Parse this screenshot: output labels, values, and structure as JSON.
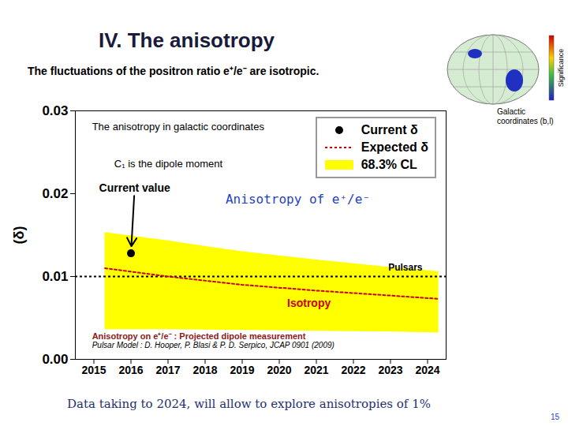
{
  "chart_data": {
    "type": "line",
    "title": "IV. The anisotropy",
    "subtitle": "The fluctuations of the positron ratio e⁺/e⁻ are isotropic.",
    "y_label": "(δ)",
    "caption": "Data taking to 2024, will allow to explore anisotropies of 1%",
    "page_number": "15",
    "skymap": {
      "colorbar_label": "Significance",
      "caption": "Galactic coordinates (b,l)"
    },
    "xlim": [
      2014.5,
      2024.5
    ],
    "xticks": [
      2015,
      2016,
      2017,
      2018,
      2019,
      2020,
      2021,
      2022,
      2023,
      2024
    ],
    "ylim": [
      0,
      0.03
    ],
    "yticks": [
      {
        "value": 0,
        "label": "0.00"
      },
      0.01,
      0.02,
      0.03
    ],
    "grid": false,
    "legend": "top-right",
    "x": [
      2015.3,
      2017,
      2019,
      2021,
      2023,
      2024.3
    ],
    "series": [
      {
        "name": "Current δ",
        "type": "scatter",
        "marker": "circle",
        "color": "#000000",
        "x": [
          2016
        ],
        "values": [
          0.0128
        ]
      },
      {
        "name": "Expected δ",
        "type": "line",
        "line_style": "dotted",
        "color": "#cc0000",
        "values": [
          0.011,
          0.01,
          0.009,
          0.0083,
          0.0077,
          0.0073
        ]
      },
      {
        "name": "68.3% CL",
        "type": "area",
        "color": "#ffff00",
        "lower": [
          0.0036,
          0.0036,
          0.0035,
          0.0034,
          0.0033,
          0.0032
        ],
        "upper": [
          0.0153,
          0.0143,
          0.013,
          0.012,
          0.0111,
          0.0106
        ]
      }
    ],
    "reference_lines": [
      {
        "value": 0.01,
        "label": "Pulsars",
        "color": "#000000",
        "line_style": "dotted"
      }
    ],
    "annotations": [
      {
        "text": "The anisotropy in galactic coordinates",
        "x": 2014.95,
        "y": 0.0281
      },
      {
        "text": "C₁ is the dipole moment",
        "x": 2015.55,
        "y": 0.0236
      },
      {
        "text": "Current value",
        "x": 2016.1,
        "y": 0.0207
      },
      {
        "text": "Anisotropy of e⁺/e⁻",
        "x": 2020.5,
        "y": 0.0193,
        "color": "#1f3fbf"
      },
      {
        "text": "Isotropy",
        "x": 2020.8,
        "y": 0.0068,
        "color": "#cc0000"
      },
      {
        "text": "Anisotropy on e⁺/e⁻ : Projected dipole measurement",
        "x": 2014.95,
        "y": 0.0028,
        "color": "#8b1a1a"
      },
      {
        "text": "Pulsar Model : D. Hooper, P. Blasi & P. D. Serpico, JCAP 0901 (2009)",
        "x": 2014.95,
        "y": 0.0017
      }
    ]
  }
}
